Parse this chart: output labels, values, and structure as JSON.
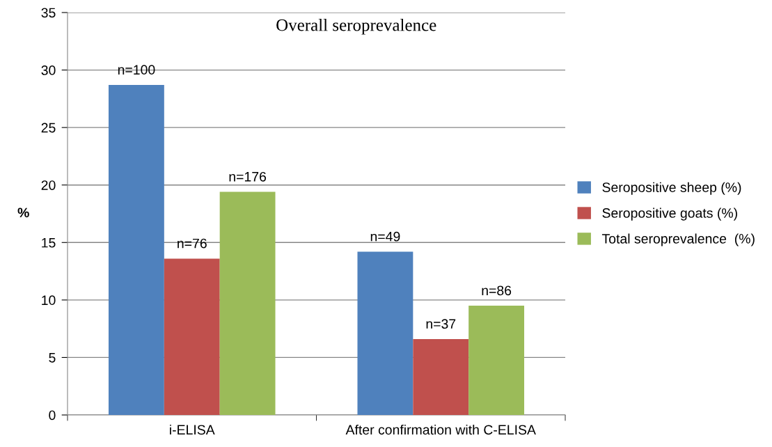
{
  "chart_data": {
    "type": "bar",
    "title": "Overall seroprevalence",
    "ylabel": "%",
    "categories": [
      "i-ELISA",
      "After confirmation with C-ELISA"
    ],
    "series": [
      {
        "name": "Seropositive sheep (%)",
        "color": "#4f81bd",
        "values": [
          28.7,
          14.2
        ]
      },
      {
        "name": "Seropositive goats (%)",
        "color": "#c0504d",
        "values": [
          13.6,
          6.6
        ]
      },
      {
        "name": "Total seroprevalence  (%)",
        "color": "#9bbb59",
        "values": [
          19.4,
          9.5
        ]
      }
    ],
    "annotations": [
      "n=100",
      "n=76",
      "n=176",
      "n=49",
      "n=37",
      "n=86"
    ],
    "ylim": [
      0,
      35
    ],
    "yticks": [
      0,
      5,
      10,
      15,
      20,
      25,
      30,
      35
    ],
    "grid": "y",
    "legend": "right"
  }
}
